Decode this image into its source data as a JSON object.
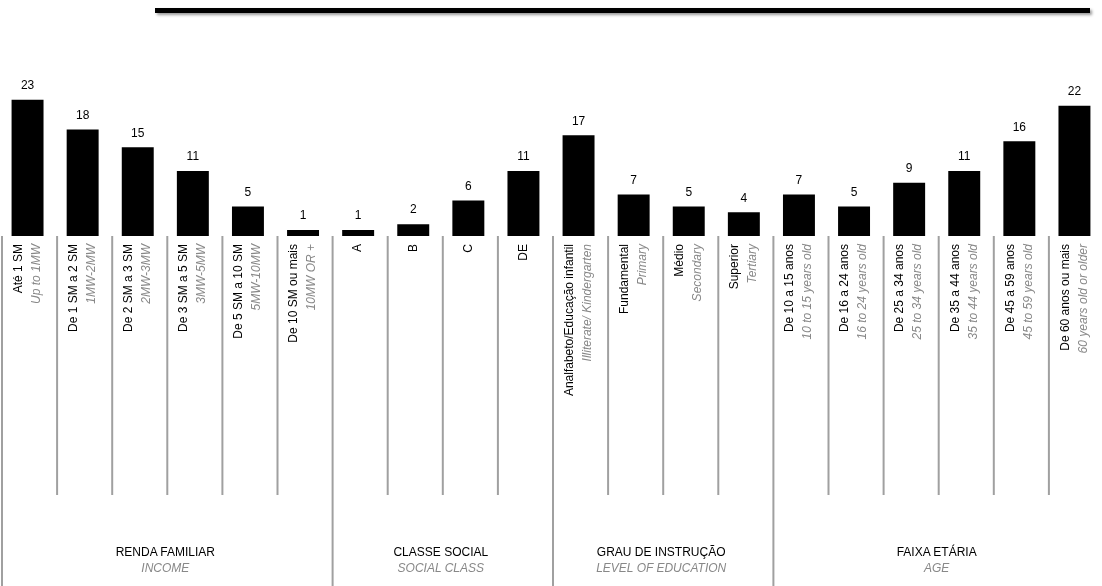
{
  "chart_data": {
    "type": "bar",
    "categories": [
      "Até 1 SM\nUp to 1MW",
      "De 1 SM a 2 SM\n1MW-2MW",
      "De 2 SM a 3 SM\n2MW-3MW",
      "De 3 SM a 5 SM\n3MW-5MW",
      "De 5 SM a 10 SM\n5MW-10MW",
      "De 10 SM ou mais\n10MW OR +",
      "A",
      "B",
      "C",
      "DE",
      "Analfabeto/Educação infantil\nIlliterate/ Kindergarten",
      "Fundamental\nPrimary",
      "Médio\nSecondary",
      "Superior\nTertiary",
      "De 10 a 15 anos\n10 to 15 years old",
      "De 16 a 24 anos\n16 to 24 years old",
      "De 25 a 34 anos\n25 to 34 years old",
      "De 35 a 44 anos\n35 to 44 years old",
      "De 45 a 59 anos\n45 to 59 years old",
      "De 60 anos ou mais\n60 years old or older"
    ],
    "values": [
      23,
      18,
      15,
      11,
      5,
      1,
      1,
      2,
      6,
      11,
      17,
      7,
      5,
      4,
      7,
      5,
      9,
      11,
      16,
      22
    ],
    "color": "#000000",
    "data_labels": true,
    "legend": false,
    "tick_labels": "x",
    "annotations": [
      "RENDA FAMILIAR\nINCOME",
      "CLASSE SOCIAL\nSOCIAL CLASS",
      "GRAU DE INSTRUÇÃO\nLEVEL OF EDUCATION",
      "FAIXA ETÁRIA\nAGE"
    ]
  }
}
